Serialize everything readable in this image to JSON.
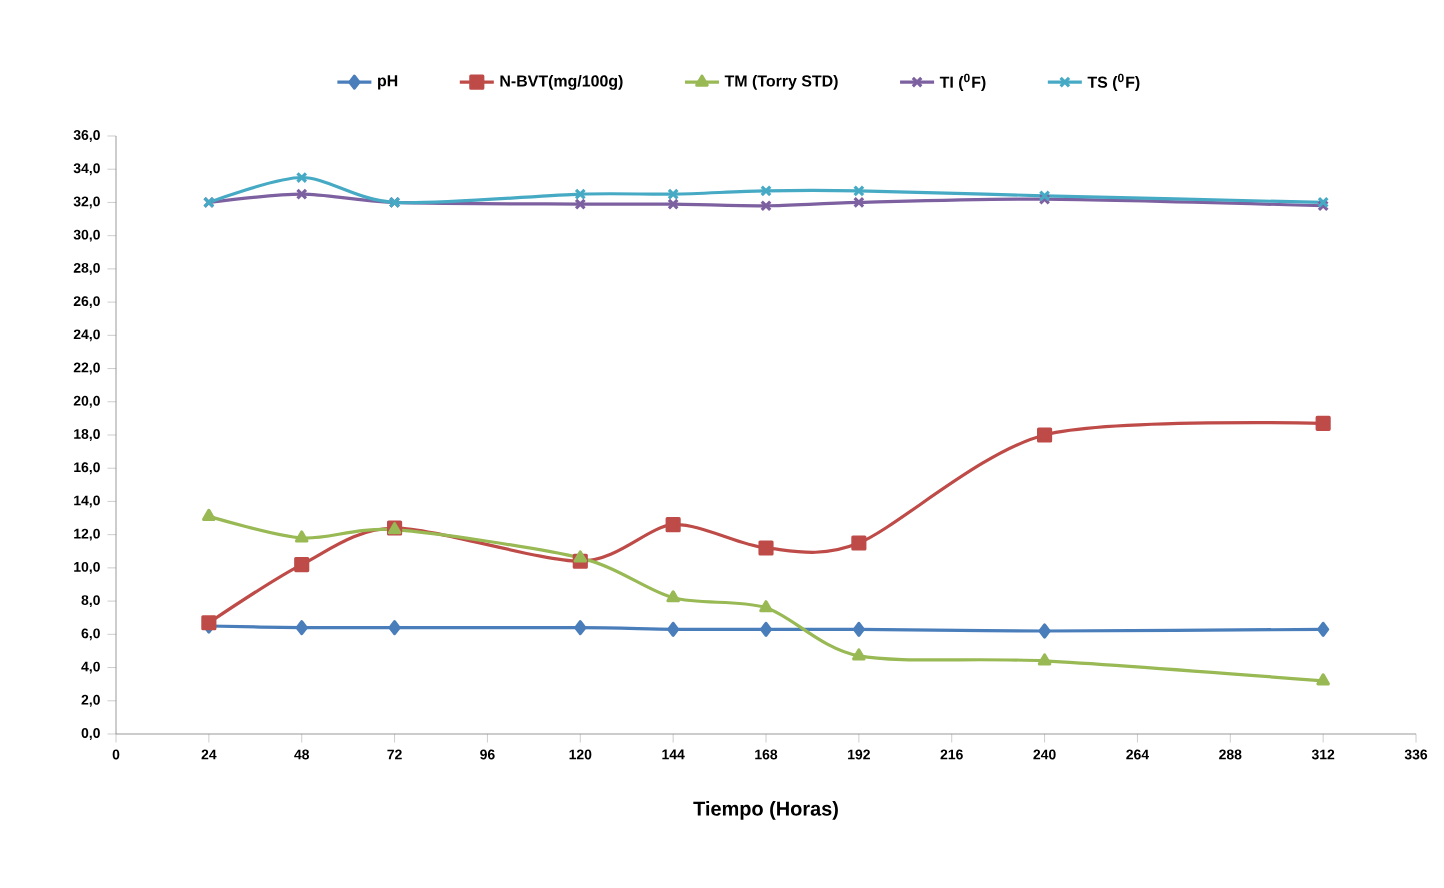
{
  "chart_data": {
    "type": "line",
    "xlabel": "Tiempo (Horas)",
    "legend": "top",
    "grid": false,
    "line_style": "solid",
    "x": [
      24,
      48,
      72,
      120,
      144,
      168,
      192,
      240,
      312
    ],
    "xlim": [
      0,
      336
    ],
    "xticks": [
      0,
      24,
      48,
      72,
      96,
      120,
      144,
      168,
      192,
      216,
      240,
      264,
      288,
      312,
      336
    ],
    "ylim": [
      0,
      36
    ],
    "yticks": [
      {
        "value": 0,
        "label": "0,0"
      },
      {
        "value": 2,
        "label": "2,0"
      },
      {
        "value": 4,
        "label": "4,0"
      },
      {
        "value": 6,
        "label": "6,0"
      },
      {
        "value": 8,
        "label": "8,0"
      },
      {
        "value": 10,
        "label": "10,0"
      },
      {
        "value": 12,
        "label": "12,0"
      },
      {
        "value": 14,
        "label": "14,0"
      },
      {
        "value": 16,
        "label": "16,0"
      },
      {
        "value": 18,
        "label": "18,0"
      },
      {
        "value": 20,
        "label": "20,0"
      },
      {
        "value": 22,
        "label": "22,0"
      },
      {
        "value": 24,
        "label": "24,0"
      },
      {
        "value": 26,
        "label": "26,0"
      },
      {
        "value": 28,
        "label": "28,0"
      },
      {
        "value": 30,
        "label": "30,0"
      },
      {
        "value": 32,
        "label": "32,0"
      },
      {
        "value": 34,
        "label": "34,0"
      },
      {
        "value": 36,
        "label": "36,0"
      }
    ],
    "series": [
      {
        "name": "pH",
        "color": "#4a7ebb",
        "marker": "diamond",
        "values": [
          6.5,
          6.4,
          6.4,
          6.4,
          6.3,
          6.3,
          6.3,
          6.2,
          6.3
        ]
      },
      {
        "name": "N-BVT(mg/100g)",
        "color": "#be4b48",
        "marker": "square",
        "values": [
          6.7,
          10.2,
          12.4,
          10.4,
          12.6,
          11.2,
          11.5,
          18.0,
          18.7
        ]
      },
      {
        "name": "TM (Torry STD)",
        "color": "#98b954",
        "marker": "triangle",
        "values": [
          13.1,
          11.8,
          12.3,
          10.6,
          8.2,
          7.6,
          4.7,
          4.4,
          3.2
        ]
      },
      {
        "name": "TI ($^{0}$F)",
        "color": "#7d60a0",
        "marker": "cross",
        "values": [
          32.0,
          32.5,
          32.0,
          31.9,
          31.9,
          31.8,
          32.0,
          32.2,
          31.8
        ]
      },
      {
        "name": "TS ($^{0}$F)",
        "color": "#46aac5",
        "marker": "cross",
        "values": [
          32.0,
          33.5,
          32.0,
          32.5,
          32.5,
          32.7,
          32.7,
          32.4,
          32.0
        ]
      }
    ]
  }
}
